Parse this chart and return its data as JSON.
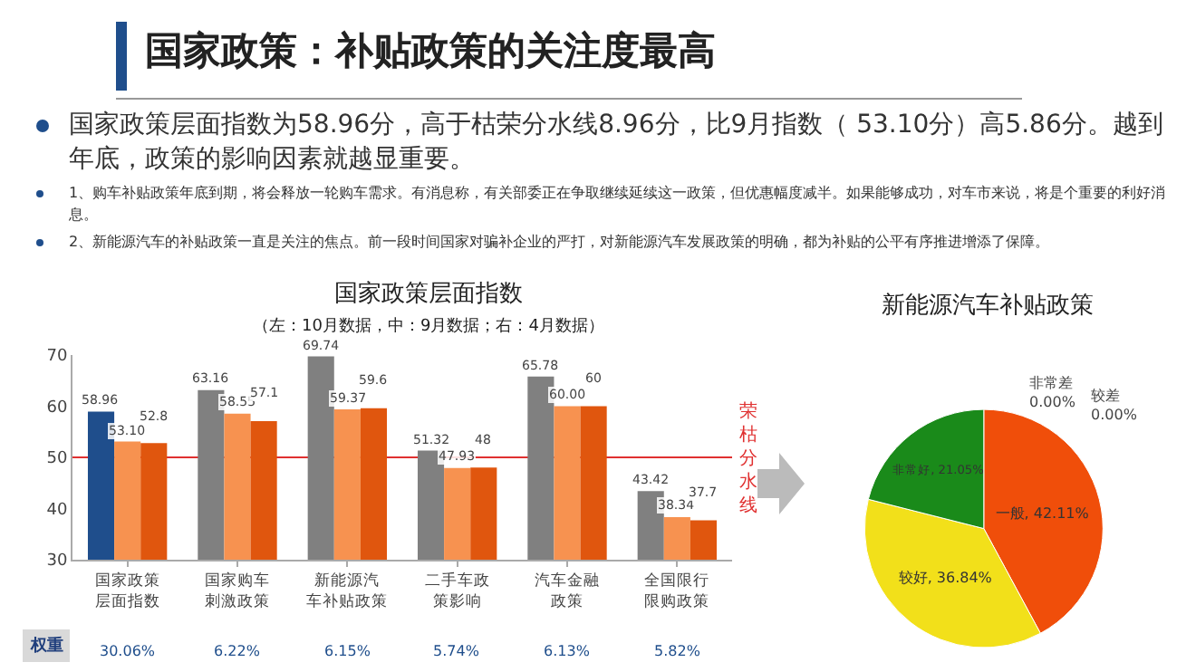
{
  "chart_data": [
    {
      "type": "other",
      "title": "国家政策：补贴政策的关注度最高",
      "annotations": [
        "国家政策层面指数为58.96分，高于枯荣分水线8.96分，比9月指数（ 53.10分）高5.86分。越到年底，政策的影响因素就越显重要。",
        "1、购车补贴政策年底到期，将会释放一轮购车需求。有消息称，有关部委正在争取继续延续这一政策，但优惠幅度减半。如果能够成功，对车市来说，将是个重要的利好消息。",
        "2、新能源汽车的补贴政策一直是关注的焦点。前一段时间国家对骗补企业的严打，对新能源汽车发展政策的明确，都为补贴的公平有序推进增添了保障。"
      ]
    },
    {
      "type": "bar",
      "title": "国家政策层面指数",
      "subtitle": "（左：10月数据，中：9月数据；右：4月数据）",
      "categories": [
        "国家政策层面指数",
        "国家购车刺激政策",
        "新能源汽车补贴政策",
        "二手车政策影响",
        "汽车金融政策",
        "全国限行限购政策"
      ],
      "series": [
        {
          "colors": [
            "#1f4e8c",
            "#808080",
            "#808080",
            "#808080",
            "#808080",
            "#808080"
          ],
          "values": [
            58.96,
            63.16,
            69.74,
            51.32,
            65.78,
            43.42
          ],
          "value_labels": [
            "58.96",
            "63.16",
            "69.74",
            "51.32",
            "65.78",
            "43.42"
          ]
        },
        {
          "color": "#f79250",
          "values": [
            53.1,
            58.55,
            59.37,
            47.93,
            60.0,
            38.34
          ],
          "value_labels": [
            "53.10",
            "58.55",
            "59.37",
            "47.93",
            "60.00",
            "38.34"
          ]
        },
        {
          "color": "#e0560e",
          "values": [
            52.8,
            57.1,
            59.6,
            48,
            60,
            37.7
          ],
          "value_labels": [
            "52.8",
            "57.1",
            "59.6",
            "48",
            "60",
            "37.7"
          ]
        }
      ],
      "ylim": [
        30,
        70
      ],
      "yticks": [
        30,
        40,
        50,
        60,
        70
      ],
      "grid": false,
      "ref_lines": [
        {
          "axis": "y",
          "value": 50,
          "label": "荣枯分水线",
          "color": "#e03030"
        }
      ],
      "annotations": [
        "权重",
        "30.06%",
        "6.22%",
        "6.15%",
        "5.74%",
        "6.13%",
        "5.82%"
      ]
    },
    {
      "type": "pie",
      "title": "新能源汽车补贴政策",
      "categories": [
        "非常差",
        "较差",
        "一般",
        "较好",
        "非常好"
      ],
      "values": [
        0,
        0,
        42.11,
        36.84,
        21.05
      ],
      "value_labels": [
        "0.00%",
        "0.00%",
        "42.11%",
        "36.84%",
        "21.05%"
      ],
      "colors": [
        "#7f7f7f",
        "#4472c4",
        "#f04e0a",
        "#f2e01a",
        "#1a8a1a"
      ]
    }
  ]
}
